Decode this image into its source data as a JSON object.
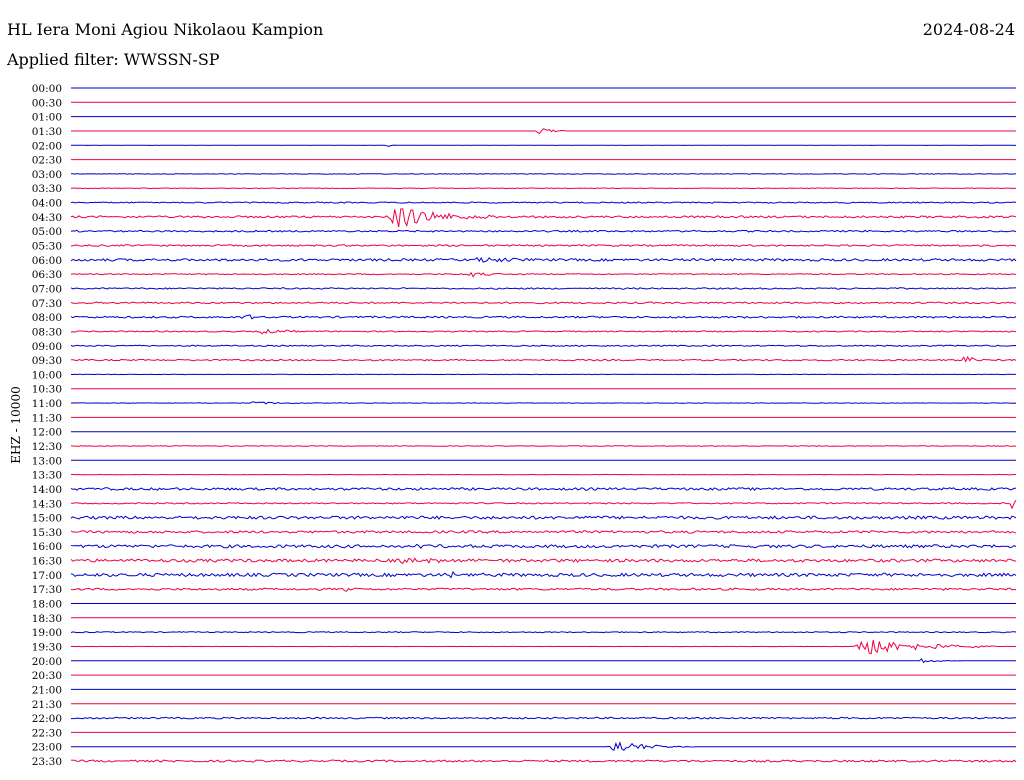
{
  "header": {
    "title": "HL Iera Moni Agiou Nikolaou Kampion",
    "date": "2024-08-24",
    "filter": "Applied filter: WWSSN-SP"
  },
  "ylabel": "EHZ - 10000",
  "colors": {
    "trace_a": "#0000cc",
    "trace_b": "#ee0044"
  },
  "chart_data": {
    "type": "line",
    "time_labels": [
      "00:00",
      "00:30",
      "01:00",
      "01:30",
      "02:00",
      "02:30",
      "03:00",
      "03:30",
      "04:00",
      "04:30",
      "05:00",
      "05:30",
      "06:00",
      "06:30",
      "07:00",
      "07:30",
      "08:00",
      "08:30",
      "09:00",
      "09:30",
      "10:00",
      "10:30",
      "11:00",
      "11:30",
      "12:00",
      "12:30",
      "13:00",
      "13:30",
      "14:00",
      "14:30",
      "15:00",
      "15:30",
      "16:00",
      "16:30",
      "17:00",
      "17:30",
      "18:00",
      "18:30",
      "19:00",
      "19:30",
      "20:00",
      "20:30",
      "21:00",
      "21:30",
      "22:00",
      "22:30",
      "23:00",
      "23:30"
    ],
    "noise_level": [
      0,
      0,
      0,
      0,
      0.1,
      0,
      0.3,
      0.3,
      0.6,
      1.0,
      0.8,
      0.8,
      1.2,
      0.5,
      0.7,
      0.8,
      0.9,
      0.6,
      0.6,
      0.7,
      0.2,
      0,
      0.2,
      0,
      0,
      0.3,
      0,
      0.2,
      1.2,
      0.6,
      1.5,
      1.2,
      1.5,
      1.5,
      1.6,
      1.0,
      0,
      0,
      0.5,
      0.1,
      0,
      0,
      0,
      0,
      0.8,
      0,
      0,
      1.0
    ],
    "events": [
      {
        "row": 3,
        "t": 0.495,
        "amp": 6,
        "dur": 0.01
      },
      {
        "row": 4,
        "t": 0.335,
        "amp": 1.5,
        "dur": 0.004
      },
      {
        "row": 9,
        "t": 0.34,
        "amp": 13,
        "dur": 0.04
      },
      {
        "row": 12,
        "t": 0.43,
        "amp": 4,
        "dur": 0.02
      },
      {
        "row": 13,
        "t": 0.42,
        "amp": 3,
        "dur": 0.02
      },
      {
        "row": 16,
        "t": 0.18,
        "amp": 3,
        "dur": 0.015
      },
      {
        "row": 17,
        "t": 0.2,
        "amp": 3,
        "dur": 0.02
      },
      {
        "row": 19,
        "t": 0.945,
        "amp": 6,
        "dur": 0.01
      },
      {
        "row": 20,
        "t": 0.12,
        "amp": 2,
        "dur": 0.003
      },
      {
        "row": 22,
        "t": 0.19,
        "amp": 1.5,
        "dur": 0.04
      },
      {
        "row": 29,
        "t": 0.997,
        "amp": 12,
        "dur": 0.005
      },
      {
        "row": 32,
        "t": 0.364,
        "amp": 5,
        "dur": 0.006
      },
      {
        "row": 33,
        "t": 0.35,
        "amp": 3,
        "dur": 0.03
      },
      {
        "row": 34,
        "t": 0.4,
        "amp": 4,
        "dur": 0.015
      },
      {
        "row": 35,
        "t": 0.29,
        "amp": 4,
        "dur": 0.006
      },
      {
        "row": 39,
        "t": 0.83,
        "amp": 12,
        "dur": 0.05
      },
      {
        "row": 40,
        "t": 0.9,
        "amp": 2,
        "dur": 0.015
      },
      {
        "row": 46,
        "t": 0.57,
        "amp": 8,
        "dur": 0.03
      }
    ]
  }
}
